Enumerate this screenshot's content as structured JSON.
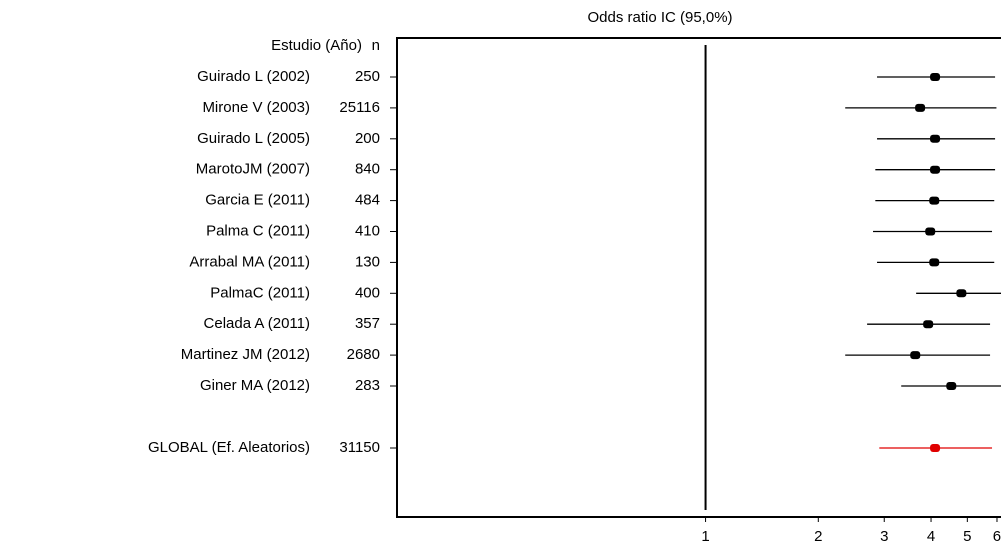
{
  "chart_data": {
    "type": "forest",
    "title": "Odds ratio IC  (95,0%)",
    "study_header": "Estudio  (Año)",
    "n_header": "n",
    "categories": [
      "Guirado L (2002)",
      "Mirone V (2003)",
      "Guirado L (2005)",
      "MarotoJM (2007)",
      "Garcia E (2011)",
      "Palma C (2011)",
      "Arrabal MA (2011)",
      "PalmaC (2011)",
      "Celada A (2011)",
      "Martinez JM (2012)",
      "Giner MA (2012)"
    ],
    "n": [
      250,
      25116,
      200,
      840,
      484,
      410,
      130,
      400,
      357,
      2680,
      283
    ],
    "values": [
      4.1,
      3.74,
      4.1,
      4.1,
      4.08,
      3.98,
      4.08,
      4.82,
      3.93,
      3.63,
      4.53
    ],
    "lower": [
      2.87,
      2.36,
      2.87,
      2.84,
      2.84,
      2.8,
      2.87,
      3.65,
      2.7,
      2.36,
      3.33
    ],
    "upper": [
      5.93,
      5.98,
      5.93,
      5.93,
      5.9,
      5.82,
      5.9,
      6.5,
      5.75,
      5.75,
      6.4
    ],
    "color": "#000000",
    "summary": {
      "name": "GLOBAL (Ef. Aleatorios)",
      "n": 31150,
      "value": 4.1,
      "lower": 2.91,
      "upper": 5.82,
      "color": "#e00000"
    },
    "reference_line": 1,
    "xscale": "log",
    "xlim": [
      0.15,
      6.15
    ],
    "xticks": [
      1,
      2,
      3,
      4,
      5,
      6
    ]
  }
}
